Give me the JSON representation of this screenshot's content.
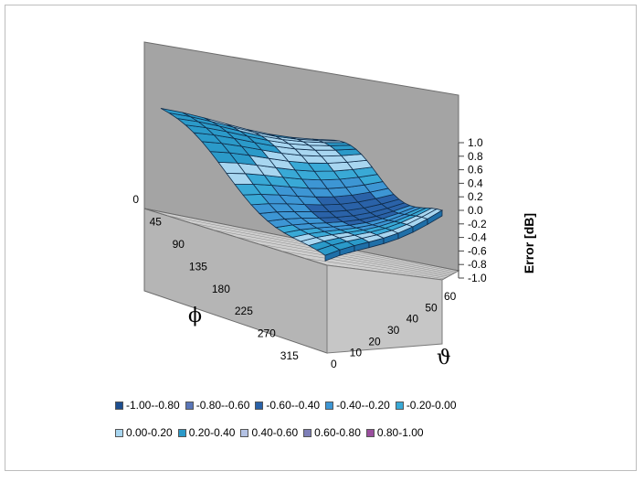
{
  "chart_data": {
    "type": "surface",
    "zlabel": "Error [dB]",
    "zlim": [
      -1.0,
      1.0
    ],
    "z_ticks": [
      "1.0",
      "0.8",
      "0.6",
      "0.4",
      "0.2",
      "0.0",
      "-0.2",
      "-0.4",
      "-0.6",
      "-0.8",
      "-1.0"
    ],
    "phi_label": "ϕ",
    "phi_ticks": [
      "0",
      "45",
      "90",
      "135",
      "180",
      "225",
      "270",
      "315"
    ],
    "theta_label": "ϑ",
    "theta_ticks": [
      "0",
      "10",
      "20",
      "30",
      "40",
      "50",
      "60"
    ],
    "legend": [
      {
        "label": "-1.00--0.80",
        "color": "#1d4e8f"
      },
      {
        "label": "-0.80--0.60",
        "color": "#5a76b8"
      },
      {
        "label": "-0.60--0.40",
        "color": "#2a62a8"
      },
      {
        "label": "-0.40--0.20",
        "color": "#3d96d4"
      },
      {
        "label": "-0.20-0.00",
        "color": "#39a9d6"
      },
      {
        "label": "0.00-0.20",
        "color": "#a8d6f0"
      },
      {
        "label": "0.20-0.40",
        "color": "#2b9ac9"
      },
      {
        "label": "0.40-0.60",
        "color": "#b4c2e4"
      },
      {
        "label": "0.60-0.80",
        "color": "#7e7fb8"
      },
      {
        "label": "0.80-1.00",
        "color": "#9a4e9e"
      }
    ]
  }
}
